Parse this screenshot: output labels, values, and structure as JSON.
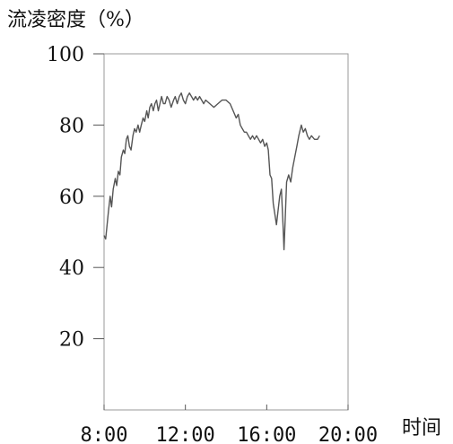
{
  "chart_data": {
    "type": "line",
    "title": "",
    "ylabel": "流凌密度（%）",
    "xlabel": "时间",
    "ylim": [
      0,
      100
    ],
    "y_ticks": [
      20,
      40,
      60,
      80,
      100
    ],
    "xlim": [
      8,
      20
    ],
    "x_ticks": [
      {
        "value": 8,
        "label": "8:00"
      },
      {
        "value": 12,
        "label": "12:00"
      },
      {
        "value": 16,
        "label": "16:00"
      },
      {
        "value": 20,
        "label": "20:00"
      }
    ],
    "grid": false,
    "series": [
      {
        "color": "#555555",
        "points": [
          [
            8.0,
            49
          ],
          [
            8.08,
            48
          ],
          [
            8.15,
            52
          ],
          [
            8.22,
            56
          ],
          [
            8.3,
            60
          ],
          [
            8.37,
            57
          ],
          [
            8.45,
            62
          ],
          [
            8.55,
            65
          ],
          [
            8.62,
            63
          ],
          [
            8.7,
            67
          ],
          [
            8.78,
            66
          ],
          [
            8.85,
            71
          ],
          [
            8.95,
            73
          ],
          [
            9.02,
            72
          ],
          [
            9.1,
            76
          ],
          [
            9.17,
            77
          ],
          [
            9.25,
            74
          ],
          [
            9.33,
            73
          ],
          [
            9.42,
            77
          ],
          [
            9.5,
            79
          ],
          [
            9.58,
            78
          ],
          [
            9.67,
            80
          ],
          [
            9.75,
            78
          ],
          [
            9.83,
            80
          ],
          [
            9.92,
            82
          ],
          [
            10.0,
            81
          ],
          [
            10.1,
            84
          ],
          [
            10.17,
            82
          ],
          [
            10.25,
            85
          ],
          [
            10.33,
            86
          ],
          [
            10.42,
            84
          ],
          [
            10.5,
            86
          ],
          [
            10.58,
            87
          ],
          [
            10.67,
            84
          ],
          [
            10.75,
            86
          ],
          [
            10.83,
            88
          ],
          [
            10.92,
            86
          ],
          [
            11.0,
            86
          ],
          [
            11.1,
            88
          ],
          [
            11.2,
            87
          ],
          [
            11.3,
            85
          ],
          [
            11.42,
            87
          ],
          [
            11.5,
            88
          ],
          [
            11.6,
            86
          ],
          [
            11.7,
            88
          ],
          [
            11.8,
            89
          ],
          [
            11.9,
            87
          ],
          [
            12.0,
            86
          ],
          [
            12.1,
            88
          ],
          [
            12.2,
            89
          ],
          [
            12.3,
            88
          ],
          [
            12.4,
            87
          ],
          [
            12.5,
            88
          ],
          [
            12.6,
            87
          ],
          [
            12.7,
            88
          ],
          [
            12.8,
            87
          ],
          [
            12.9,
            86
          ],
          [
            13.0,
            87
          ],
          [
            13.2,
            86
          ],
          [
            13.4,
            85
          ],
          [
            13.6,
            86
          ],
          [
            13.8,
            87
          ],
          [
            14.0,
            87
          ],
          [
            14.2,
            86
          ],
          [
            14.35,
            84
          ],
          [
            14.5,
            82
          ],
          [
            14.6,
            83
          ],
          [
            14.7,
            80
          ],
          [
            14.8,
            79
          ],
          [
            14.9,
            78
          ],
          [
            15.0,
            78
          ],
          [
            15.1,
            77
          ],
          [
            15.2,
            76
          ],
          [
            15.3,
            77
          ],
          [
            15.4,
            76
          ],
          [
            15.5,
            77
          ],
          [
            15.6,
            76
          ],
          [
            15.7,
            75
          ],
          [
            15.8,
            76
          ],
          [
            15.9,
            74
          ],
          [
            16.0,
            75
          ],
          [
            16.08,
            73
          ],
          [
            16.16,
            66
          ],
          [
            16.24,
            65
          ],
          [
            16.32,
            58
          ],
          [
            16.4,
            55
          ],
          [
            16.48,
            52
          ],
          [
            16.56,
            56
          ],
          [
            16.64,
            60
          ],
          [
            16.72,
            62
          ],
          [
            16.8,
            52
          ],
          [
            16.85,
            45
          ],
          [
            16.9,
            52
          ],
          [
            16.98,
            64
          ],
          [
            17.08,
            66
          ],
          [
            17.18,
            64
          ],
          [
            17.28,
            68
          ],
          [
            17.38,
            71
          ],
          [
            17.48,
            74
          ],
          [
            17.58,
            77
          ],
          [
            17.7,
            80
          ],
          [
            17.8,
            78
          ],
          [
            17.9,
            79
          ],
          [
            18.0,
            77
          ],
          [
            18.1,
            76
          ],
          [
            18.2,
            77
          ],
          [
            18.35,
            76
          ],
          [
            18.5,
            76
          ],
          [
            18.6,
            77
          ]
        ]
      }
    ]
  }
}
